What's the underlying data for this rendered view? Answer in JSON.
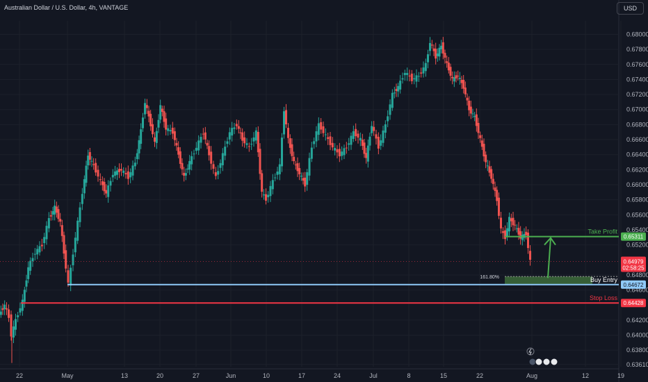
{
  "header": {
    "title": "Australian Dollar / U.S. Dollar, 4h, VANTAGE",
    "currency": "USD"
  },
  "chart_data": {
    "type": "candlestick",
    "title": "Australian Dollar / U.S. Dollar, 4h, VANTAGE",
    "ylim": [
      0.6358,
      0.6818
    ],
    "y_ticks": [
      "0.68000",
      "0.67800",
      "0.67600",
      "0.67400",
      "0.67200",
      "0.67000",
      "0.66800",
      "0.66600",
      "0.66400",
      "0.66200",
      "0.66000",
      "0.65800",
      "0.65600",
      "0.65400",
      "0.65200",
      "0.64800",
      "0.64600",
      "0.64200",
      "0.64000",
      "0.63800",
      "0.63610"
    ],
    "x_ticks": [
      "22",
      "May",
      "13",
      "20",
      "27",
      "Jun",
      "10",
      "17",
      "24",
      "Jul",
      "8",
      "15",
      "22",
      "Aug",
      "12",
      "19"
    ],
    "price_path": [
      {
        "x": 0,
        "y": 0.6427
      },
      {
        "x": 8,
        "y": 0.644
      },
      {
        "x": 14,
        "y": 0.6424
      },
      {
        "x": 18,
        "y": 0.64
      },
      {
        "x": 24,
        "y": 0.642
      },
      {
        "x": 34,
        "y": 0.6445
      },
      {
        "x": 42,
        "y": 0.649
      },
      {
        "x": 52,
        "y": 0.651
      },
      {
        "x": 62,
        "y": 0.652
      },
      {
        "x": 72,
        "y": 0.6555
      },
      {
        "x": 80,
        "y": 0.657
      },
      {
        "x": 88,
        "y": 0.655
      },
      {
        "x": 96,
        "y": 0.649
      },
      {
        "x": 100,
        "y": 0.6468
      },
      {
        "x": 110,
        "y": 0.653
      },
      {
        "x": 120,
        "y": 0.659
      },
      {
        "x": 128,
        "y": 0.664
      },
      {
        "x": 136,
        "y": 0.6625
      },
      {
        "x": 146,
        "y": 0.6605
      },
      {
        "x": 154,
        "y": 0.6588
      },
      {
        "x": 164,
        "y": 0.6615
      },
      {
        "x": 176,
        "y": 0.662
      },
      {
        "x": 186,
        "y": 0.661
      },
      {
        "x": 196,
        "y": 0.663
      },
      {
        "x": 204,
        "y": 0.6672
      },
      {
        "x": 210,
        "y": 0.671
      },
      {
        "x": 218,
        "y": 0.668
      },
      {
        "x": 224,
        "y": 0.6655
      },
      {
        "x": 232,
        "y": 0.6705
      },
      {
        "x": 240,
        "y": 0.6675
      },
      {
        "x": 250,
        "y": 0.667
      },
      {
        "x": 258,
        "y": 0.664
      },
      {
        "x": 266,
        "y": 0.661
      },
      {
        "x": 274,
        "y": 0.663
      },
      {
        "x": 284,
        "y": 0.665
      },
      {
        "x": 294,
        "y": 0.667
      },
      {
        "x": 302,
        "y": 0.664
      },
      {
        "x": 312,
        "y": 0.661
      },
      {
        "x": 322,
        "y": 0.664
      },
      {
        "x": 332,
        "y": 0.667
      },
      {
        "x": 342,
        "y": 0.668
      },
      {
        "x": 350,
        "y": 0.666
      },
      {
        "x": 360,
        "y": 0.665
      },
      {
        "x": 370,
        "y": 0.667
      },
      {
        "x": 378,
        "y": 0.659
      },
      {
        "x": 384,
        "y": 0.658
      },
      {
        "x": 394,
        "y": 0.6605
      },
      {
        "x": 404,
        "y": 0.6625
      },
      {
        "x": 410,
        "y": 0.67
      },
      {
        "x": 416,
        "y": 0.666
      },
      {
        "x": 424,
        "y": 0.663
      },
      {
        "x": 432,
        "y": 0.6615
      },
      {
        "x": 440,
        "y": 0.66
      },
      {
        "x": 450,
        "y": 0.665
      },
      {
        "x": 460,
        "y": 0.668
      },
      {
        "x": 470,
        "y": 0.6665
      },
      {
        "x": 480,
        "y": 0.665
      },
      {
        "x": 490,
        "y": 0.664
      },
      {
        "x": 500,
        "y": 0.665
      },
      {
        "x": 510,
        "y": 0.667
      },
      {
        "x": 520,
        "y": 0.666
      },
      {
        "x": 528,
        "y": 0.6635
      },
      {
        "x": 536,
        "y": 0.668
      },
      {
        "x": 546,
        "y": 0.665
      },
      {
        "x": 556,
        "y": 0.668
      },
      {
        "x": 566,
        "y": 0.672
      },
      {
        "x": 574,
        "y": 0.673
      },
      {
        "x": 584,
        "y": 0.675
      },
      {
        "x": 594,
        "y": 0.674
      },
      {
        "x": 604,
        "y": 0.6745
      },
      {
        "x": 614,
        "y": 0.676
      },
      {
        "x": 620,
        "y": 0.679
      },
      {
        "x": 628,
        "y": 0.677
      },
      {
        "x": 636,
        "y": 0.6785
      },
      {
        "x": 644,
        "y": 0.676
      },
      {
        "x": 652,
        "y": 0.674
      },
      {
        "x": 660,
        "y": 0.6745
      },
      {
        "x": 668,
        "y": 0.673
      },
      {
        "x": 676,
        "y": 0.67
      },
      {
        "x": 684,
        "y": 0.669
      },
      {
        "x": 692,
        "y": 0.666
      },
      {
        "x": 700,
        "y": 0.663
      },
      {
        "x": 708,
        "y": 0.661
      },
      {
        "x": 716,
        "y": 0.658
      },
      {
        "x": 722,
        "y": 0.654
      },
      {
        "x": 728,
        "y": 0.653
      },
      {
        "x": 734,
        "y": 0.6555
      },
      {
        "x": 742,
        "y": 0.6545
      },
      {
        "x": 750,
        "y": 0.653
      },
      {
        "x": 758,
        "y": 0.6535
      },
      {
        "x": 764,
        "y": 0.6498
      }
    ],
    "levels": [
      {
        "label": "Take Profit",
        "price": "0.65311",
        "value": 0.65311,
        "color": "#4caf50"
      },
      {
        "label": "Buy Entry",
        "price": "0.64672",
        "value": 0.64672,
        "color": "#90caf9"
      },
      {
        "label": "Stop Loss",
        "price": "0.64428",
        "value": 0.64428,
        "color": "#f23645"
      }
    ],
    "current_price": {
      "price": "0.64979",
      "timer": "02:58:25",
      "value": 0.64979,
      "color": "#f23645"
    },
    "fib_label": "161.80%"
  }
}
